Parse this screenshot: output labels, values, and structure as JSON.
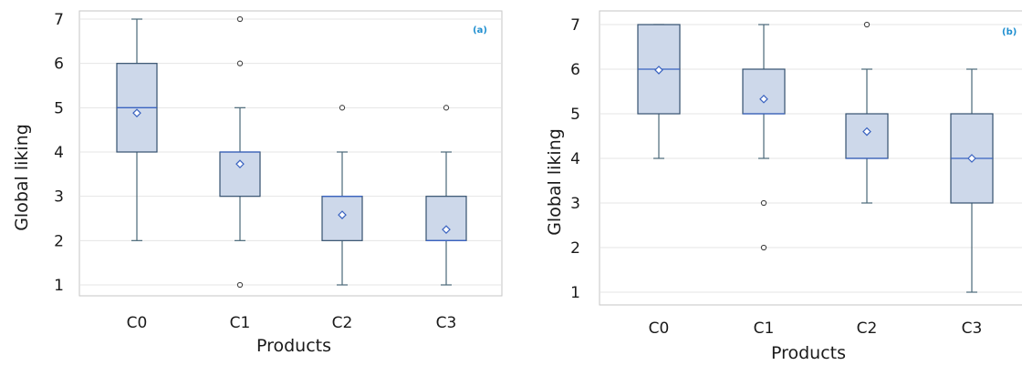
{
  "colors": {
    "box_fill": "#cdd8ea",
    "box_stroke": "#34506e",
    "median": "#3a63c0",
    "mean_marker": "#3a63c0",
    "whisker": "#4a6878",
    "outlier": "#444444",
    "grid": "#e4e4e4",
    "frame": "#c6c6c6",
    "panel_tag": "#1f8fd0"
  },
  "chart_data": [
    {
      "type": "box",
      "panel_label": "(a)",
      "xlabel": "Products",
      "ylabel": "Global liking",
      "categories": [
        "C0",
        "C1",
        "C2",
        "C3"
      ],
      "ylim": [
        0.8,
        7.2
      ],
      "yticks": [
        1,
        2,
        3,
        4,
        5,
        6,
        7
      ],
      "grid": true,
      "boxes": [
        {
          "category": "C0",
          "whisker_low": 2,
          "q1": 4,
          "median": 5,
          "q3": 6,
          "whisker_high": 7,
          "mean": 4.88,
          "outliers": []
        },
        {
          "category": "C1",
          "whisker_low": 2,
          "q1": 3,
          "median": 4,
          "q3": 4,
          "whisker_high": 5,
          "mean": 3.73,
          "outliers": [
            1,
            6,
            7
          ]
        },
        {
          "category": "C2",
          "whisker_low": 1,
          "q1": 2,
          "median": 3,
          "q3": 3,
          "whisker_high": 4,
          "mean": 2.58,
          "outliers": [
            5
          ]
        },
        {
          "category": "C3",
          "whisker_low": 1,
          "q1": 2,
          "median": 2,
          "q3": 3,
          "whisker_high": 4,
          "mean": 2.25,
          "outliers": [
            5
          ]
        }
      ]
    },
    {
      "type": "box",
      "panel_label": "(b)",
      "xlabel": "Products",
      "ylabel": "Global liking",
      "categories": [
        "C0",
        "C1",
        "C2",
        "C3"
      ],
      "ylim": [
        0.8,
        7.2
      ],
      "yticks": [
        1,
        2,
        3,
        4,
        5,
        6,
        7
      ],
      "grid": true,
      "boxes": [
        {
          "category": "C0",
          "whisker_low": 4,
          "q1": 5,
          "median": 6,
          "q3": 7,
          "whisker_high": 7,
          "mean": 5.98,
          "outliers": []
        },
        {
          "category": "C1",
          "whisker_low": 4,
          "q1": 5,
          "median": 5,
          "q3": 6,
          "whisker_high": 7,
          "mean": 5.33,
          "outliers": [
            2,
            3
          ]
        },
        {
          "category": "C2",
          "whisker_low": 3,
          "q1": 4,
          "median": 4,
          "q3": 5,
          "whisker_high": 6,
          "mean": 4.6,
          "outliers": [
            7
          ]
        },
        {
          "category": "C3",
          "whisker_low": 1,
          "q1": 3,
          "median": 4,
          "q3": 5,
          "whisker_high": 6,
          "mean": 4.0,
          "outliers": []
        }
      ]
    }
  ]
}
